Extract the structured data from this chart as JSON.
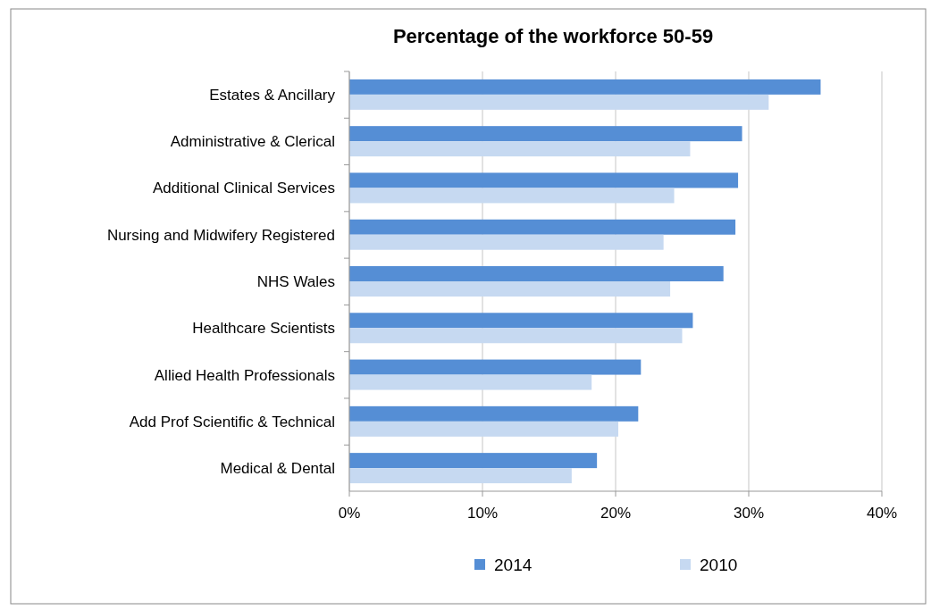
{
  "chart_data": {
    "type": "bar",
    "orientation": "horizontal",
    "title": "Percentage of the workforce 50-59",
    "categories": [
      "Estates & Ancillary",
      "Administrative & Clerical",
      "Additional Clinical Services",
      "Nursing and Midwifery Registered",
      "NHS Wales",
      "Healthcare Scientists",
      "Allied Health Professionals",
      "Add Prof Scientific & Technical",
      "Medical & Dental"
    ],
    "series": [
      {
        "name": "2014",
        "color": "#558ed5",
        "values": [
          35.4,
          29.5,
          29.2,
          29.0,
          28.1,
          25.8,
          21.9,
          21.7,
          18.6
        ]
      },
      {
        "name": "2010",
        "color": "#c6d9f1",
        "values": [
          31.5,
          25.6,
          24.4,
          23.6,
          24.1,
          25.0,
          18.2,
          20.2,
          16.7
        ]
      }
    ],
    "xlim": [
      0,
      40
    ],
    "xticks": [
      {
        "value": 0,
        "label": "0%"
      },
      {
        "value": 10,
        "label": "10%"
      },
      {
        "value": 20,
        "label": "20%"
      },
      {
        "value": 30,
        "label": "30%"
      },
      {
        "value": 40,
        "label": "40%"
      }
    ],
    "grid": "x",
    "legend": "bottom"
  }
}
